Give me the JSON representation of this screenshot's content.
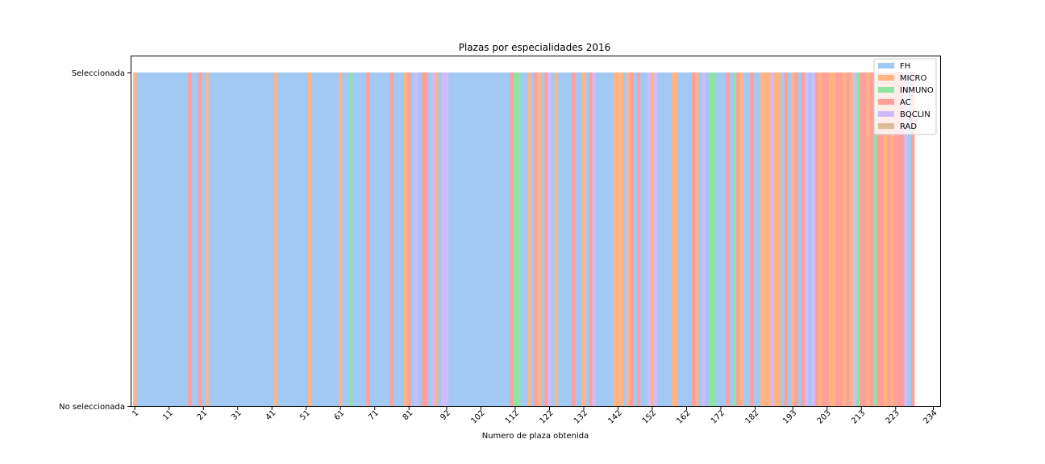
{
  "chart_data": {
    "type": "bar",
    "title": "Plazas por especialidades 2016",
    "xlabel": "Numero de plaza obtenida",
    "ylabel": "",
    "y_tick_labels": [
      "No seleccionada",
      "Seleccionada"
    ],
    "x_tick_labels": [
      "1",
      "11",
      "21",
      "31",
      "41",
      "51",
      "61",
      "71",
      "81",
      "92",
      "102",
      "112",
      "122",
      "132",
      "142",
      "152",
      "162",
      "172",
      "182",
      "193",
      "203",
      "213",
      "223",
      "234"
    ],
    "x_tick_positions": [
      1,
      11,
      21,
      31,
      41,
      51,
      61,
      71,
      81,
      92,
      102,
      112,
      122,
      132,
      142,
      152,
      162,
      172,
      182,
      193,
      203,
      213,
      223,
      234
    ],
    "xlim": [
      0,
      236
    ],
    "legend_position": "top-right",
    "series": [
      {
        "name": "FH",
        "color": "#a1c9f4"
      },
      {
        "name": "MICRO",
        "color": "#ffb482"
      },
      {
        "name": "INMUNO",
        "color": "#8de5a1"
      },
      {
        "name": "AC",
        "color": "#ff9f9b"
      },
      {
        "name": "BQCLIN",
        "color": "#d0bbff"
      },
      {
        "name": "RAD",
        "color": "#debb9b"
      }
    ],
    "plazas": [
      "MICRO",
      "FH",
      "FH",
      "FH",
      "FH",
      "FH",
      "FH",
      "FH",
      "FH",
      "FH",
      "FH",
      "FH",
      "FH",
      "FH",
      "FH",
      "FH",
      "AC",
      "FH",
      "FH",
      "AC",
      "FH",
      "MICRO",
      "FH",
      "FH",
      "FH",
      "FH",
      "FH",
      "FH",
      "FH",
      "FH",
      "FH",
      "FH",
      "FH",
      "FH",
      "FH",
      "FH",
      "FH",
      "FH",
      "FH",
      "FH",
      "FH",
      "MICRO",
      "FH",
      "FH",
      "FH",
      "FH",
      "FH",
      "FH",
      "FH",
      "FH",
      "FH",
      "MICRO",
      "FH",
      "FH",
      "FH",
      "FH",
      "FH",
      "FH",
      "FH",
      "FH",
      "MICRO",
      "FH",
      "FH",
      "INMUNO",
      "FH",
      "FH",
      "FH",
      "FH",
      "AC",
      "FH",
      "FH",
      "FH",
      "FH",
      "FH",
      "FH",
      "AC",
      "FH",
      "FH",
      "FH",
      "MICRO",
      "AC",
      "FH",
      "BQCLIN",
      "FH",
      "AC",
      "AC",
      "FH",
      "BQCLIN",
      "MICRO",
      "FH",
      "BQCLIN",
      "BQCLIN",
      "FH",
      "FH",
      "FH",
      "FH",
      "FH",
      "FH",
      "FH",
      "FH",
      "FH",
      "FH",
      "FH",
      "FH",
      "FH",
      "FH",
      "FH",
      "FH",
      "FH",
      "FH",
      "AC",
      "INMUNO",
      "INMUNO",
      "FH",
      "FH",
      "MICRO",
      "FH",
      "AC",
      "MICRO",
      "FH",
      "AC",
      "BQCLIN",
      "FH",
      "MICRO",
      "FH",
      "FH",
      "FH",
      "FH",
      "AC",
      "FH",
      "FH",
      "MICRO",
      "FH",
      "AC",
      "BQCLIN",
      "FH",
      "FH",
      "FH",
      "FH",
      "FH",
      "MICRO",
      "MICRO",
      "MICRO",
      "FH",
      "MICRO",
      "AC",
      "FH",
      "AC",
      "FH",
      "FH",
      "BQCLIN",
      "MICRO",
      "BQCLIN",
      "FH",
      "FH",
      "FH",
      "FH",
      "MICRO",
      "MICRO",
      "FH",
      "FH",
      "FH",
      "FH",
      "AC",
      "MICRO",
      "FH",
      "BQCLIN",
      "FH",
      "INMUNO",
      "INMUNO",
      "FH",
      "FH",
      "FH",
      "AC",
      "FH",
      "INMUNO",
      "AC",
      "MICRO",
      "FH",
      "FH",
      "AC",
      "FH",
      "FH",
      "MICRO",
      "MICRO",
      "MICRO",
      "BQCLIN",
      "MICRO",
      "MICRO",
      "FH",
      "AC",
      "FH",
      "MICRO",
      "AC",
      "FH",
      "AC",
      "BQCLIN",
      "FH",
      "BQCLIN",
      "AC",
      "MICRO",
      "AC",
      "AC",
      "MICRO",
      "MICRO",
      "AC",
      "AC",
      "MICRO",
      "AC",
      "MICRO",
      "BQCLIN",
      "INMUNO",
      "AC",
      "AC",
      "MICRO",
      "AC",
      "INMUNO",
      "AC",
      "AC",
      "MICRO",
      "AC",
      "MICRO",
      "AC",
      "AC",
      "AC",
      "BQCLIN",
      "FH",
      "AC"
    ]
  }
}
